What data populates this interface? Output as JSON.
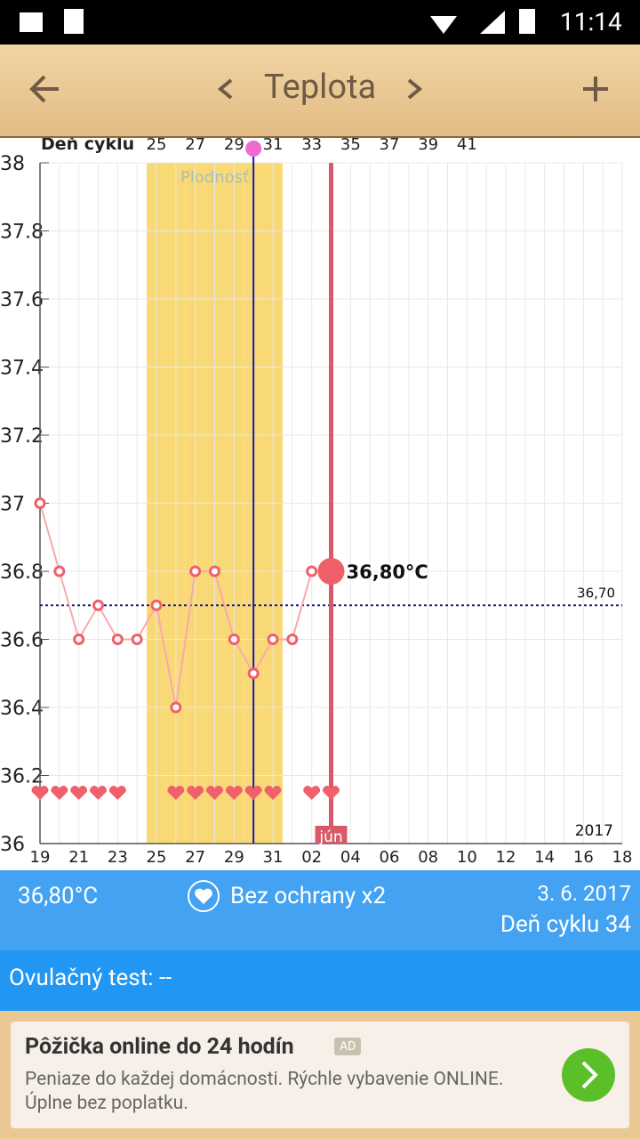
{
  "status_bar": {
    "time": "11:14"
  },
  "header": {
    "title": "Teplota"
  },
  "chart_data": {
    "type": "line",
    "categories": [
      "19",
      null,
      "21",
      null,
      "23",
      null,
      "25",
      null,
      "27",
      null,
      "29",
      null,
      "31",
      null,
      "02",
      null,
      "04",
      null,
      "06",
      null,
      "08",
      null,
      "10",
      null,
      "12",
      null,
      "14",
      null,
      "16",
      null,
      "18"
    ],
    "top_axis": {
      "label": "Deň cyklu",
      "categories": [
        null,
        null,
        null,
        null,
        null,
        null,
        "25",
        null,
        "27",
        null,
        "29",
        null,
        "31",
        null,
        "33",
        null,
        "35",
        null,
        "37",
        null,
        "39",
        null,
        "41",
        null,
        null,
        null,
        null,
        null,
        null,
        null,
        null
      ]
    },
    "series": [
      {
        "color": "#f0606a",
        "values": [
          37.0,
          36.8,
          36.6,
          36.7,
          36.6,
          36.6,
          36.7,
          36.4,
          36.8,
          36.8,
          36.6,
          36.5,
          36.6,
          36.6,
          36.8,
          36.8,
          null,
          null,
          null,
          null,
          null,
          null,
          null,
          null,
          null,
          null,
          null,
          null,
          null,
          null,
          null
        ],
        "value_labels": [
          null,
          null,
          null,
          null,
          null,
          null,
          null,
          null,
          null,
          null,
          null,
          null,
          null,
          null,
          null,
          "36,80°C",
          null,
          null,
          null,
          null,
          null,
          null,
          null,
          null,
          null,
          null,
          null,
          null,
          null,
          null,
          null
        ]
      }
    ],
    "hearts": [
      true,
      true,
      true,
      true,
      true,
      false,
      false,
      true,
      true,
      true,
      true,
      true,
      true,
      false,
      true,
      true,
      false,
      false,
      false,
      false,
      false,
      false,
      false,
      false,
      false,
      false,
      false,
      false,
      false,
      false,
      false
    ],
    "fertile": {
      "label": "Plodnosť",
      "days": [
        false,
        false,
        false,
        false,
        false,
        false,
        true,
        true,
        true,
        true,
        true,
        true,
        true,
        false,
        false,
        false,
        false,
        false,
        false,
        false,
        false,
        false,
        false,
        false,
        false,
        false,
        false,
        false,
        false,
        false,
        false
      ]
    },
    "ovulation": [
      false,
      false,
      false,
      false,
      false,
      false,
      false,
      false,
      false,
      false,
      false,
      true,
      false,
      false,
      false,
      false,
      false,
      false,
      false,
      false,
      false,
      false,
      false,
      false,
      false,
      false,
      false,
      false,
      false,
      false,
      false
    ],
    "month_labels": [
      null,
      null,
      null,
      null,
      null,
      null,
      null,
      null,
      null,
      null,
      null,
      null,
      null,
      null,
      null,
      "jún",
      null,
      null,
      null,
      null,
      null,
      null,
      null,
      null,
      null,
      null,
      null,
      null,
      null,
      null,
      null
    ],
    "year_label": "2017",
    "reference_line": {
      "value": 36.7,
      "label": "36,70"
    },
    "ylim": [
      36,
      38
    ],
    "yticks": [
      36,
      36.2,
      36.4,
      36.6,
      36.8,
      37,
      37.2,
      37.4,
      37.6,
      37.8,
      38
    ],
    "grid": true
  },
  "info": {
    "temperature": "36,80°C",
    "status": "Bez ochrany x2",
    "date": "3. 6. 2017",
    "cycle_day": "Deň cyklu 34",
    "ovulation_test": "Ovulačný test: --"
  },
  "ad": {
    "title": "Pôžička online do 24 hodín",
    "badge": "AD",
    "body": "Peniaze do každej domácnosti. Rýchle vybavenie ONLINE. Úplne bez poplatku."
  }
}
